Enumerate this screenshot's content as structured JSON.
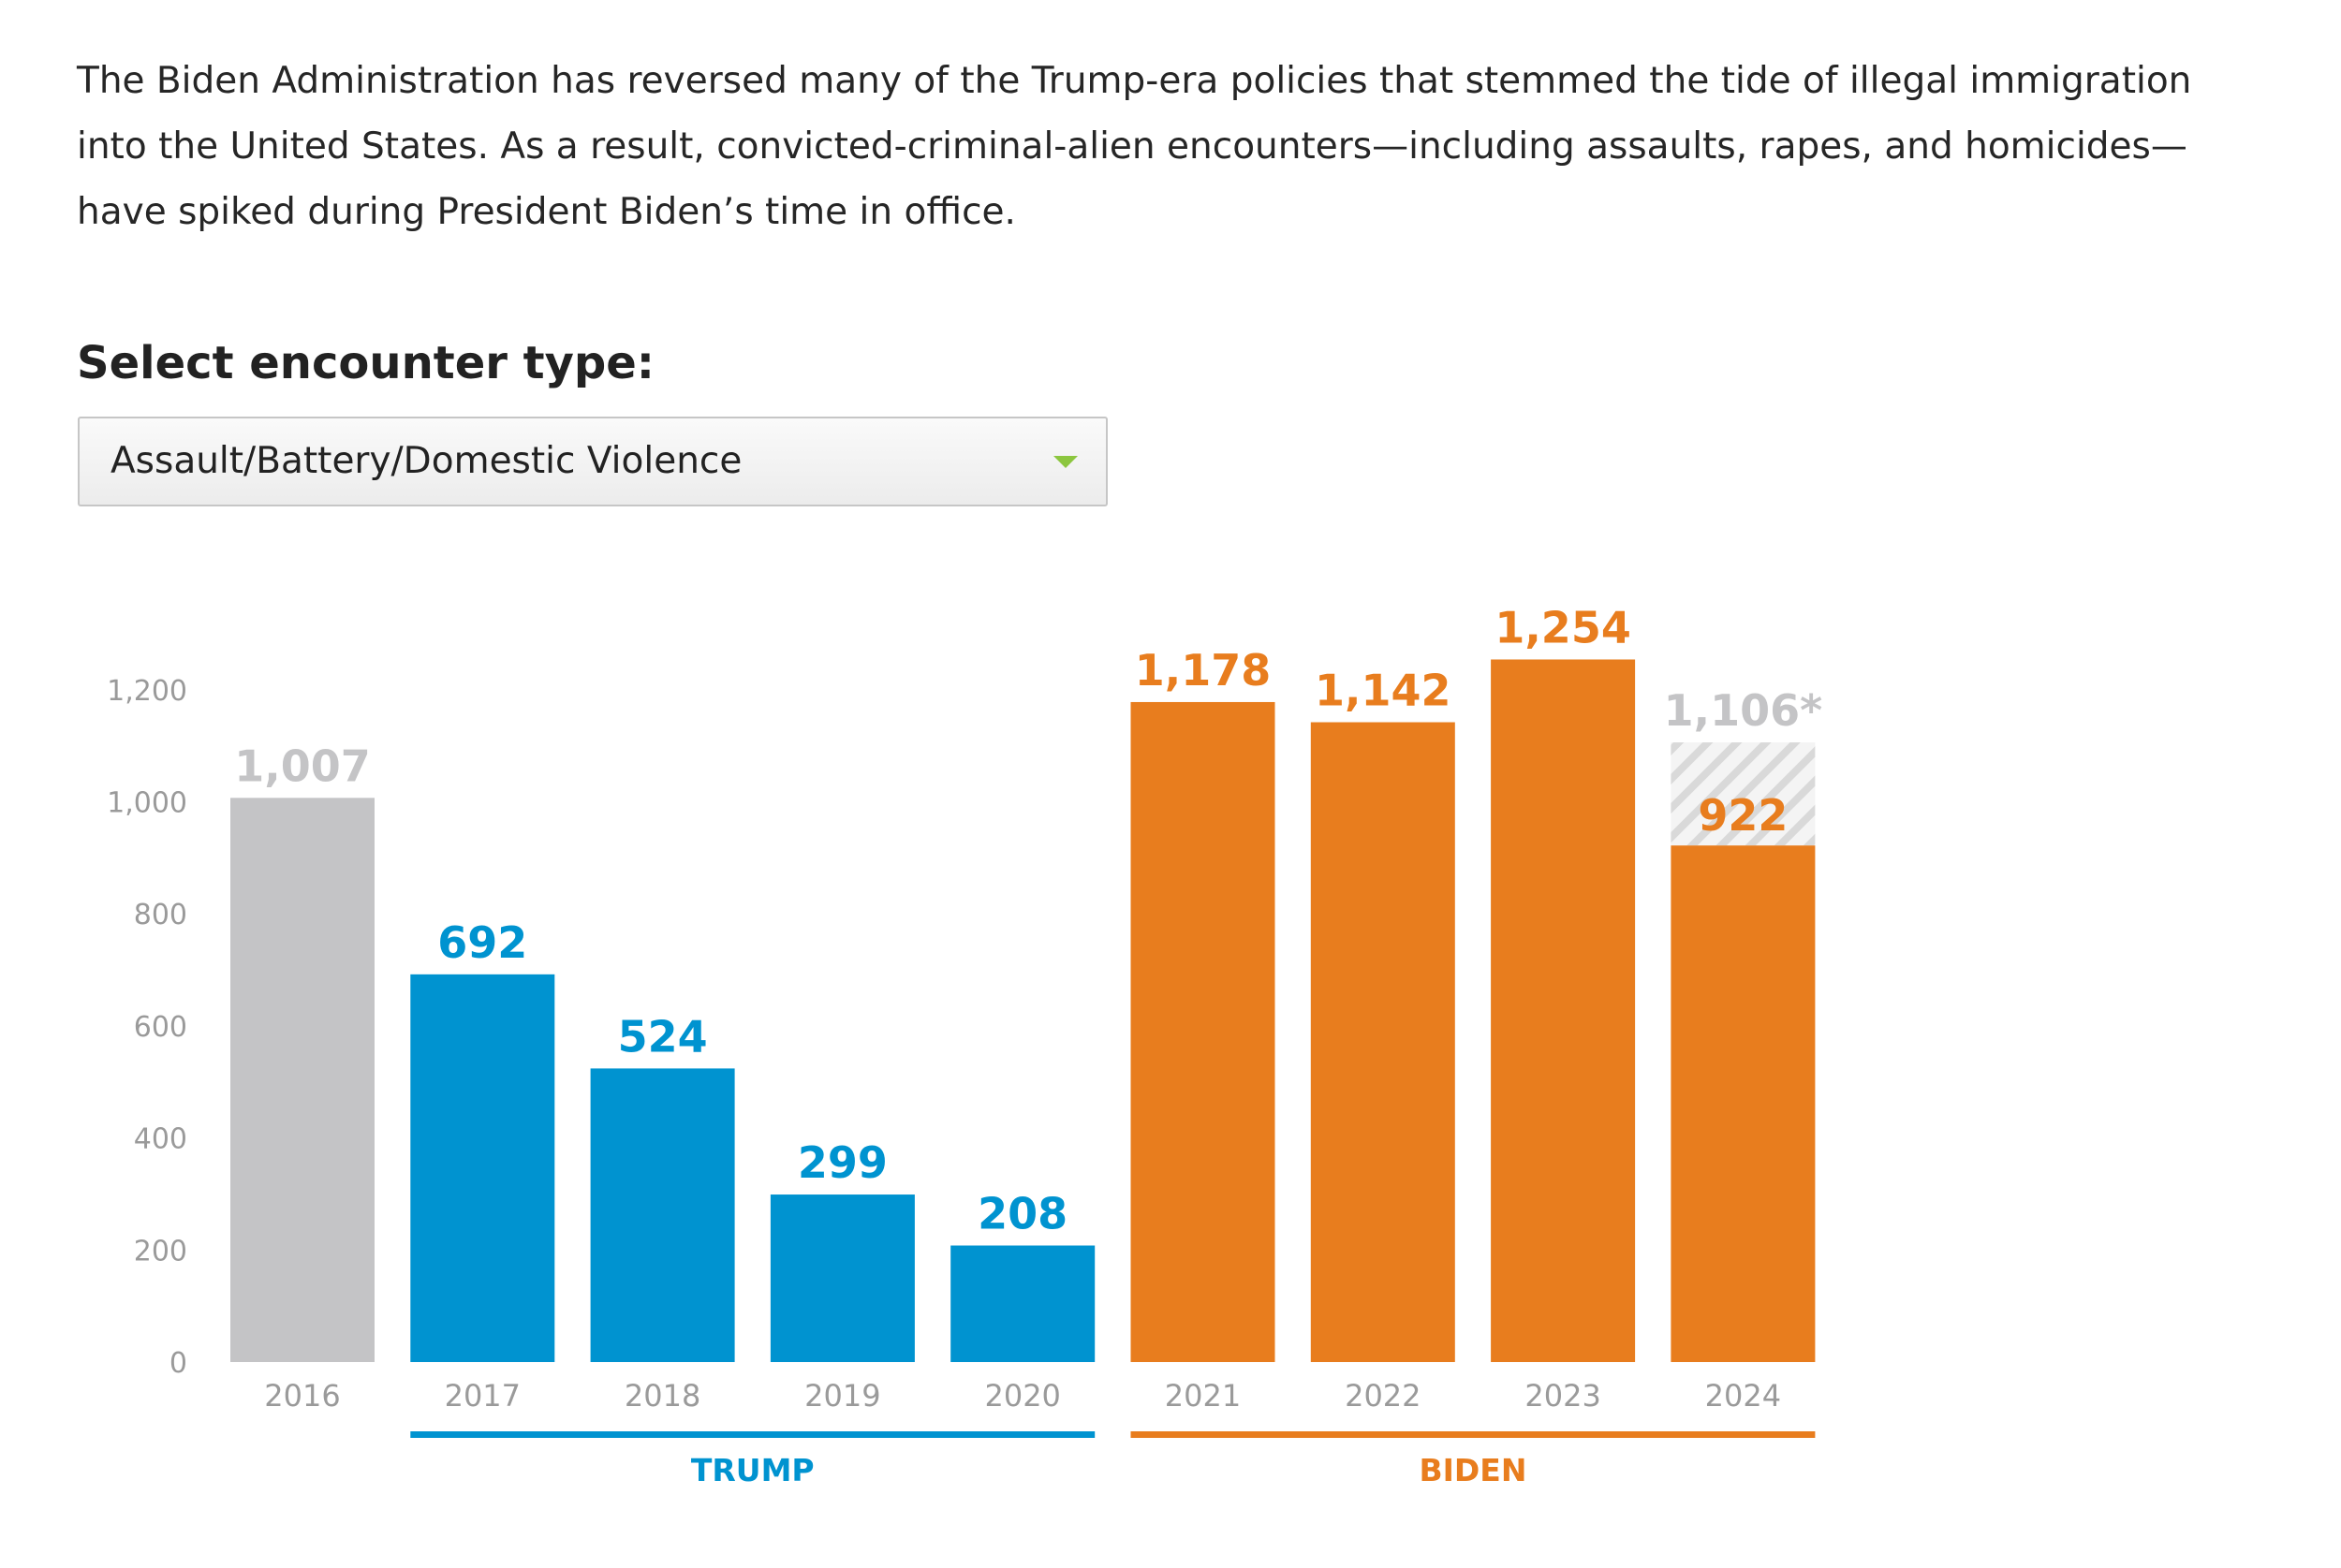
{
  "intro": {
    "text": "The Biden Administration has reversed many of the Trump-era policies that stemmed the tide of illegal immigration into the United States. As a result, convicted-criminal-alien encounters—including assaults, rapes, and homicides—have spiked during President Biden’s time in office."
  },
  "selector": {
    "label": "Select encounter type:",
    "value": "Assault/Battery/Domestic Violence",
    "arrow_color": "#8cc63f"
  },
  "colors": {
    "baseline": "#c4c4c6",
    "trump": "#0093d0",
    "biden": "#e87d1e",
    "projected_label": "#c4c4c6",
    "axis_text": "#9a9a9a"
  },
  "chart_data": {
    "type": "bar",
    "categories": [
      "2016",
      "2017",
      "2018",
      "2019",
      "2020",
      "2021",
      "2022",
      "2023",
      "2024"
    ],
    "values": [
      1007,
      692,
      524,
      299,
      208,
      1178,
      1142,
      1254,
      922
    ],
    "value_labels": [
      "1,007",
      "692",
      "524",
      "299",
      "208",
      "1,178",
      "1,142",
      "1,254",
      "922"
    ],
    "bar_groups": [
      "baseline",
      "trump",
      "trump",
      "trump",
      "trump",
      "biden",
      "biden",
      "biden",
      "biden"
    ],
    "projected": {
      "category": "2024",
      "value": 1106,
      "label": "1,106*"
    },
    "yticks": [
      0,
      200,
      400,
      600,
      800,
      1000,
      1200
    ],
    "ytick_labels": [
      "0",
      "200",
      "400",
      "600",
      "800",
      "1,000",
      "1,200"
    ],
    "ylim": [
      0,
      1200
    ],
    "grid": false,
    "legend": "none",
    "groups": [
      {
        "name": "TRUMP",
        "from": "2017",
        "to": "2020",
        "color_key": "trump"
      },
      {
        "name": "BIDEN",
        "from": "2021",
        "to": "2024",
        "color_key": "biden"
      }
    ]
  }
}
